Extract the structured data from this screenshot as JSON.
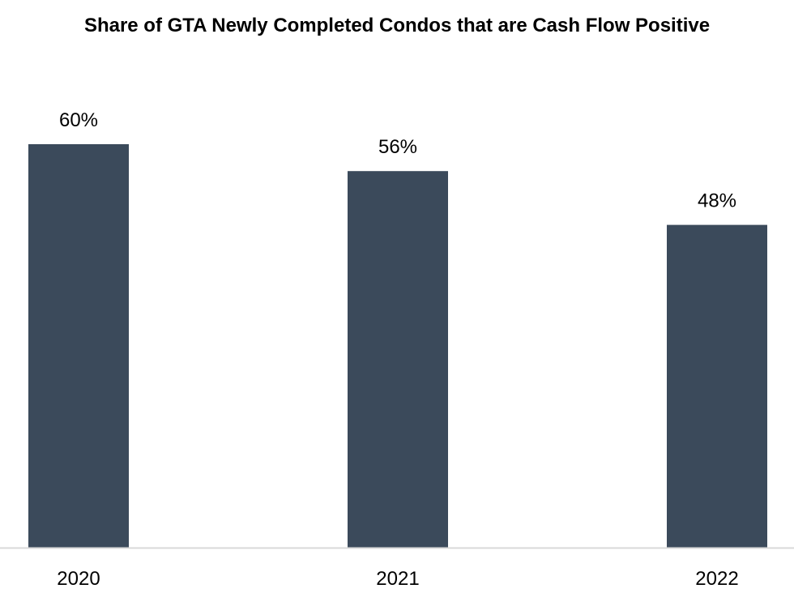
{
  "colors": {
    "bar": "#3b4a5b",
    "axis": "#d9d9d9",
    "text": "#000000",
    "background": "#ffffff"
  },
  "chart_data": {
    "type": "bar",
    "title": "Share of GTA Newly Completed Condos that are Cash Flow Positive",
    "xlabel": "",
    "ylabel": "",
    "categories": [
      "2020",
      "2021",
      "2022"
    ],
    "values": [
      60,
      56,
      48
    ],
    "value_labels": [
      "60%",
      "56%",
      "48%"
    ],
    "unit": "%",
    "ylim": [
      0,
      60
    ],
    "grid": false,
    "legend": "none"
  }
}
